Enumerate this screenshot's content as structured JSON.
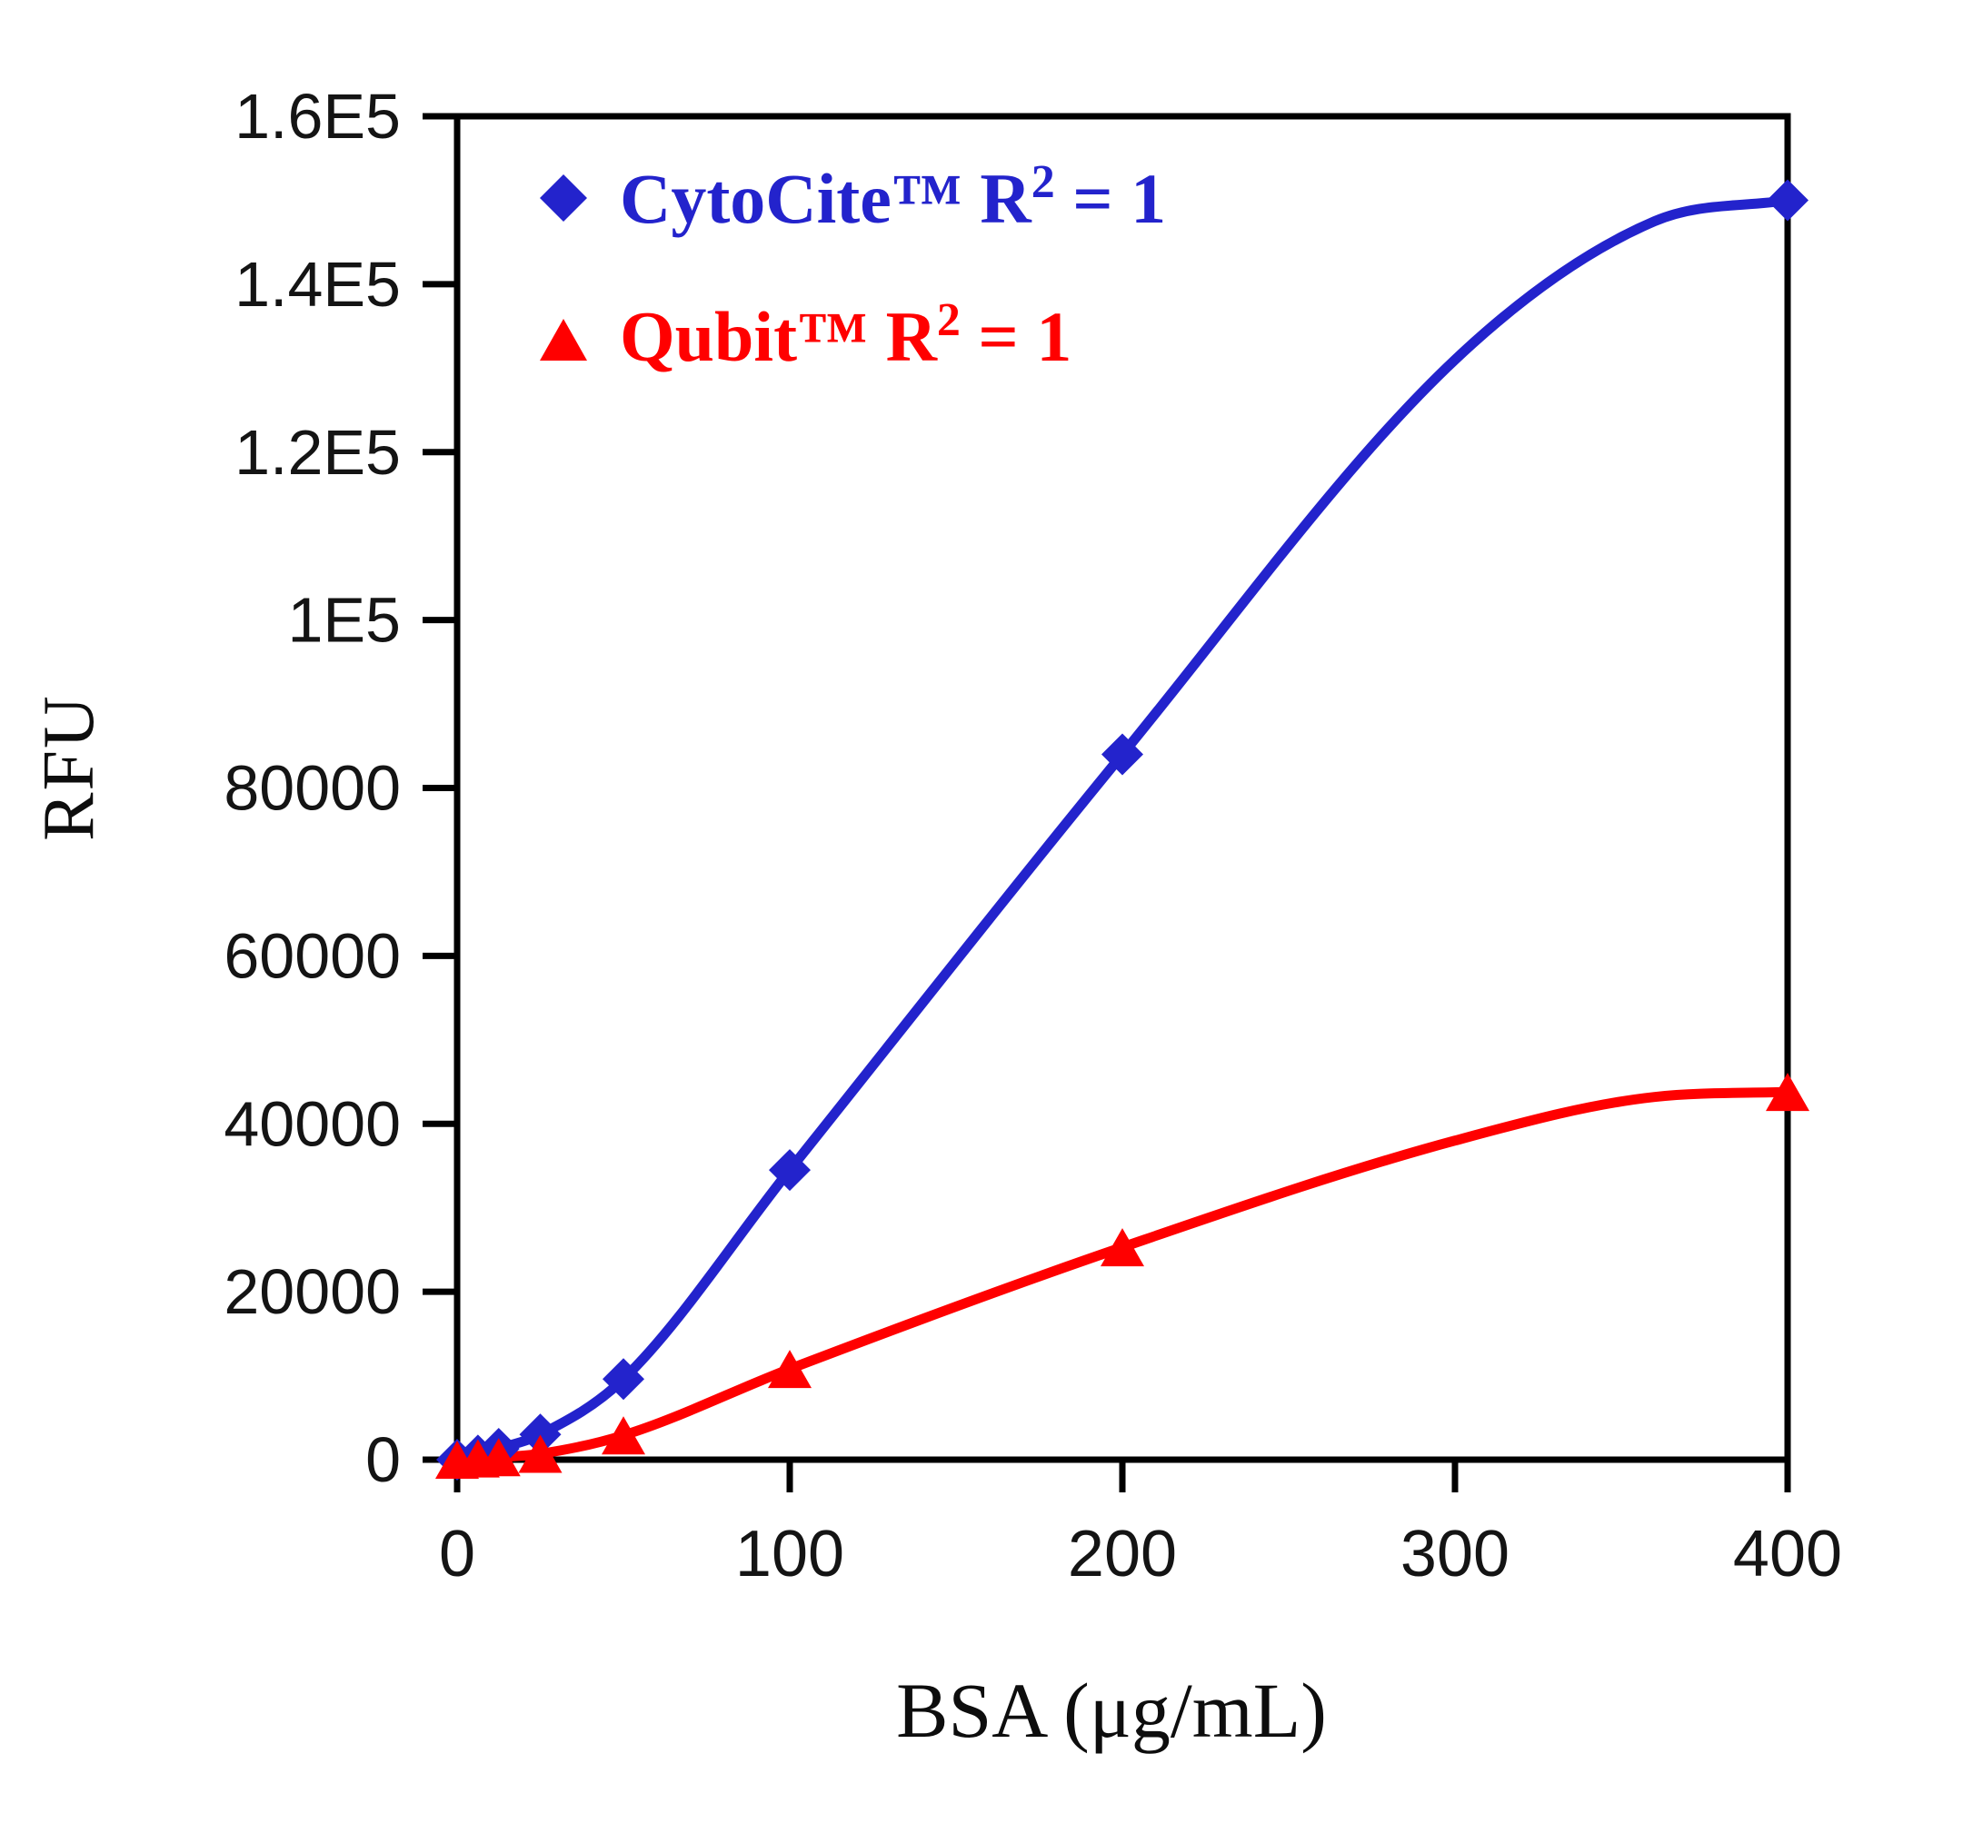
{
  "figure": {
    "background_color": "#ffffff",
    "axis_color": "#000000",
    "y_axis_title": "RFU",
    "x_axis_title": "BSA (μg/mL)"
  },
  "chart_data": {
    "type": "scatter",
    "title": "",
    "xlabel": "BSA (μg/mL)",
    "ylabel": "RFU",
    "xlim": [
      0,
      400
    ],
    "ylim": [
      0,
      160000
    ],
    "grid": false,
    "legend_position": "upper-left-inside",
    "x_ticks": [
      0,
      100,
      200,
      300,
      400
    ],
    "x_tick_labels": [
      "0",
      "100",
      "200",
      "300",
      "400"
    ],
    "y_ticks": [
      0,
      20000,
      40000,
      60000,
      80000,
      100000,
      120000,
      140000,
      160000
    ],
    "y_tick_labels": [
      "0",
      "20000",
      "40000",
      "60000",
      "80000",
      "1E5",
      "1.2E5",
      "1.4E5",
      "1.6E5"
    ],
    "series": [
      {
        "name": "CytoCite™  R² = 1",
        "marker": "diamond",
        "color": "#2323cc",
        "x": [
          0,
          6.25,
          12.5,
          25,
          50,
          100,
          200,
          400
        ],
        "y": [
          0,
          500,
          1300,
          3000,
          9600,
          34500,
          84000,
          150000
        ],
        "fit_curve_anchors": {
          "x": [
            0,
            6.25,
            12.5,
            25,
            50,
            100,
            200,
            300,
            360,
            400
          ],
          "y": [
            0,
            500,
            1300,
            3000,
            9600,
            34500,
            84000,
            131000,
            147500,
            150000
          ]
        }
      },
      {
        "name": "Qubit™  R² = 1",
        "marker": "triangle",
        "color": "#ff0000",
        "x": [
          0,
          6.25,
          12.5,
          25,
          50,
          100,
          200,
          400
        ],
        "y": [
          0,
          150,
          300,
          700,
          2900,
          10800,
          25300,
          43800
        ],
        "fit_curve_anchors": {
          "x": [
            0,
            6.25,
            12.5,
            25,
            50,
            100,
            200,
            300,
            360,
            400
          ],
          "y": [
            0,
            150,
            300,
            700,
            2900,
            10800,
            25300,
            38000,
            43200,
            43800
          ]
        }
      }
    ]
  }
}
